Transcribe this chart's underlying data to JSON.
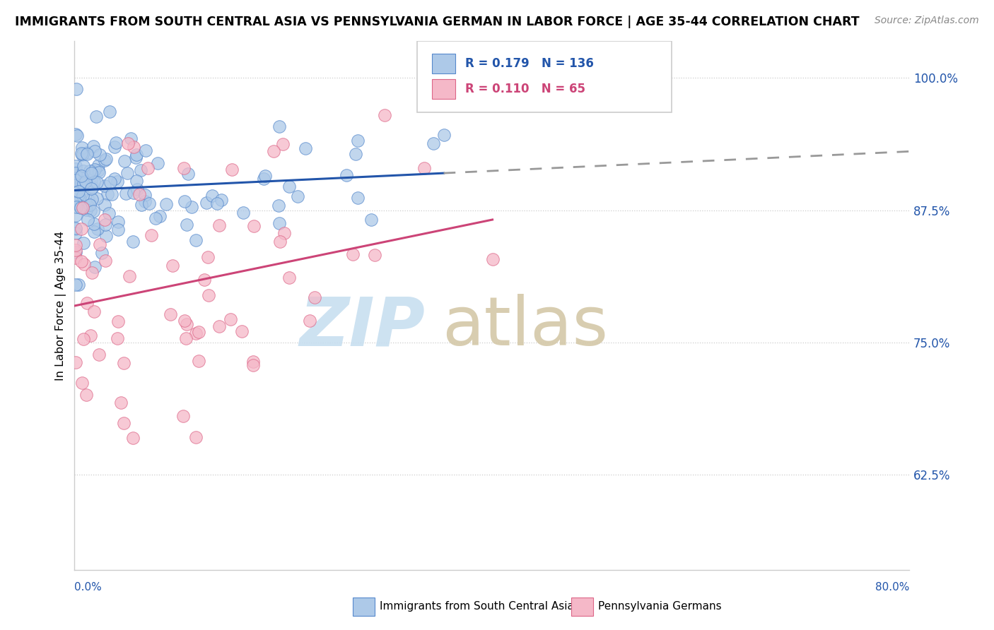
{
  "title": "IMMIGRANTS FROM SOUTH CENTRAL ASIA VS PENNSYLVANIA GERMAN IN LABOR FORCE | AGE 35-44 CORRELATION CHART",
  "source": "Source: ZipAtlas.com",
  "ylabel": "In Labor Force | Age 35-44",
  "y_tick_labels": [
    "62.5%",
    "75.0%",
    "87.5%",
    "100.0%"
  ],
  "y_tick_values": [
    0.625,
    0.75,
    0.875,
    1.0
  ],
  "x_range": [
    0.0,
    0.8
  ],
  "y_range": [
    0.535,
    1.035
  ],
  "blue_color": "#adc9e8",
  "blue_edge_color": "#5588cc",
  "blue_line_color": "#2255aa",
  "blue_R": 0.179,
  "blue_N": 136,
  "pink_color": "#f5b8c8",
  "pink_edge_color": "#dd6688",
  "pink_line_color": "#cc4477",
  "pink_R": 0.11,
  "pink_N": 65,
  "legend_label_blue": "Immigrants from South Central Asia",
  "legend_label_pink": "Pennsylvania Germans",
  "watermark_zip_color": "#c8dff0",
  "watermark_atlas_color": "#d4c8a8",
  "grid_color": "#cccccc",
  "spine_color": "#cccccc"
}
